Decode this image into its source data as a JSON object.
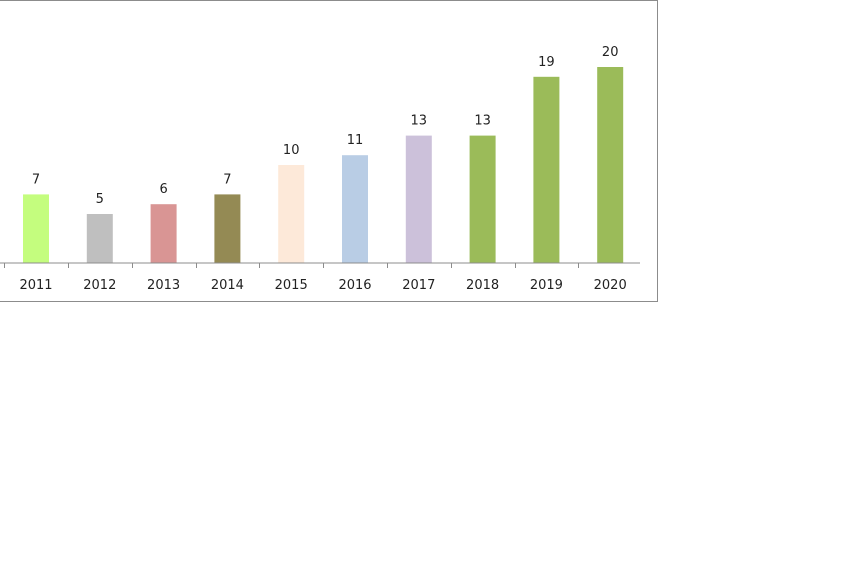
{
  "chart_data": {
    "type": "bar",
    "title": "",
    "xlabel": "",
    "ylabel": "",
    "categories": [
      "2011",
      "2012",
      "2013",
      "2014",
      "2015",
      "2016",
      "2017",
      "2018",
      "2019",
      "2020"
    ],
    "values": [
      7,
      5,
      6,
      7,
      10,
      11,
      13,
      13,
      19,
      20
    ],
    "colors": [
      "#c4fd7e",
      "#bfbfbf",
      "#d99594",
      "#948a54",
      "#fde9d9",
      "#b9cde5",
      "#ccc1da",
      "#9bbb59",
      "#9bbb59",
      "#9bbb59"
    ],
    "ylim": [
      0,
      20
    ],
    "grid": false,
    "legend": "none",
    "data_labels": true
  }
}
